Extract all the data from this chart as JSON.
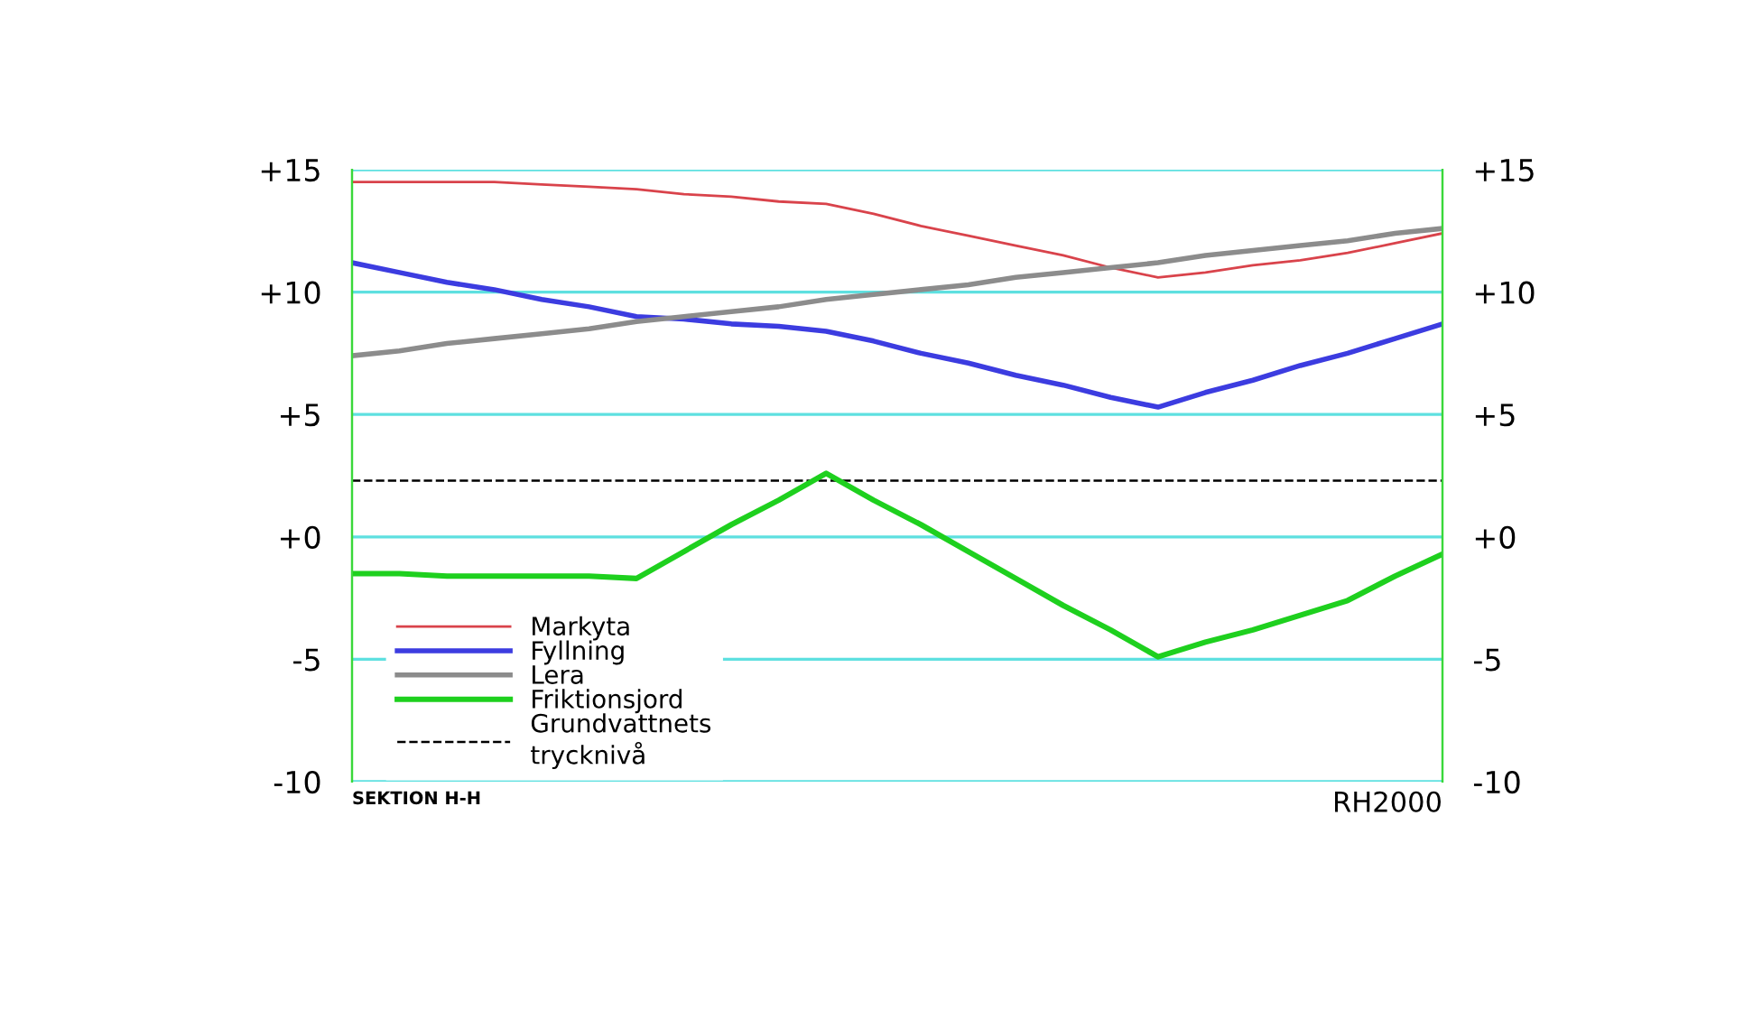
{
  "chart_data": {
    "type": "line",
    "categories": [
      null,
      null,
      null,
      null,
      null,
      null,
      null,
      null,
      null,
      null,
      null,
      null,
      null,
      null,
      null,
      null,
      null,
      null,
      null,
      null,
      null,
      null,
      null,
      null
    ],
    "series": [
      {
        "name": "Markyta",
        "color": "#d9434b",
        "values": [
          14.5,
          14.5,
          14.5,
          14.5,
          14.4,
          14.3,
          14.2,
          14.0,
          13.9,
          13.7,
          13.6,
          13.2,
          12.7,
          12.3,
          11.9,
          11.5,
          11.0,
          10.6,
          10.8,
          11.1,
          11.3,
          11.6,
          12.0,
          12.4
        ]
      },
      {
        "name": "Fyllning",
        "color": "#3c3ce0",
        "values": [
          11.2,
          10.8,
          10.4,
          10.1,
          9.7,
          9.4,
          9.0,
          8.9,
          8.7,
          8.6,
          8.4,
          8.0,
          7.5,
          7.1,
          6.6,
          6.2,
          5.7,
          5.3,
          5.9,
          6.4,
          7.0,
          7.5,
          8.1,
          8.7
        ]
      },
      {
        "name": "Lera",
        "color": "#8c8c8c",
        "values": [
          7.4,
          7.6,
          7.9,
          8.1,
          8.3,
          8.5,
          8.8,
          9.0,
          9.2,
          9.4,
          9.7,
          9.9,
          10.1,
          10.3,
          10.6,
          10.8,
          11.0,
          11.2,
          11.5,
          11.7,
          11.9,
          12.1,
          12.4,
          12.6
        ]
      },
      {
        "name": "Friktionsjord",
        "color": "#1ed01e",
        "values": [
          -1.5,
          -1.5,
          -1.6,
          -1.6,
          -1.6,
          -1.6,
          -1.7,
          -0.6,
          0.5,
          1.5,
          2.6,
          1.5,
          0.5,
          -0.6,
          -1.7,
          -2.8,
          -3.8,
          -4.9,
          -4.3,
          -3.8,
          -3.2,
          -2.6,
          -1.6,
          -0.7
        ]
      }
    ],
    "ref_lines": [
      {
        "axis": "y",
        "value": 2.3,
        "label": "Grundvattnets\ntrycknivå",
        "color": "#000000",
        "line_style": "dashed"
      }
    ],
    "ylim": [
      -10,
      15
    ],
    "yticks": [
      {
        "value": -10,
        "label": "-10"
      },
      {
        "value": -5,
        "label": "-5"
      },
      {
        "value": 0,
        "label": "+0"
      },
      {
        "value": 5,
        "label": "+5"
      },
      {
        "value": 10,
        "label": "+10"
      },
      {
        "value": 15,
        "label": "+15"
      }
    ],
    "y2lim": [
      -10,
      15
    ],
    "y2ticks": [
      {
        "value": -10,
        "label": "-10"
      },
      {
        "value": -5,
        "label": "-5"
      },
      {
        "value": 0,
        "label": "+0"
      },
      {
        "value": 5,
        "label": "+5"
      },
      {
        "value": 10,
        "label": "+10"
      },
      {
        "value": 15,
        "label": "+15"
      }
    ],
    "tick_labels": "y",
    "grid": "y",
    "legend": "bottom left",
    "marker": "none",
    "line_style": "solid",
    "annotations": [
      "SEKTION H-H",
      "RH2000"
    ]
  }
}
